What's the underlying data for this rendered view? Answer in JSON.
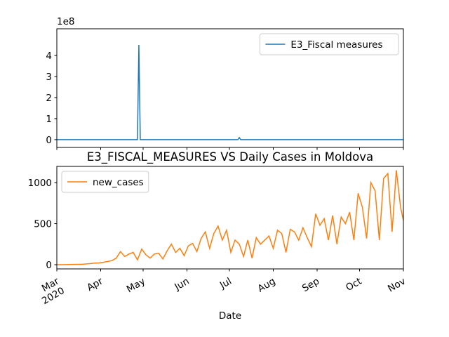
{
  "chart_data": [
    {
      "type": "line",
      "x": [
        0,
        57,
        58,
        59,
        128,
        129,
        130,
        245
      ],
      "series": [
        {
          "name": "E3_Fiscal measures",
          "color": "#1f77b4",
          "values": [
            0,
            0,
            4.5,
            0,
            0,
            0.1,
            0,
            0
          ]
        }
      ],
      "xlim": [
        0,
        245
      ],
      "xticks": [
        0,
        31,
        61,
        92,
        122,
        153,
        184,
        214,
        245
      ],
      "show_xtick_labels": false,
      "ylim": [
        -0.37,
        5.27
      ],
      "yticks": [
        0,
        1,
        2,
        3,
        4
      ],
      "offset_text": "1e8",
      "legend": "upper right"
    },
    {
      "type": "line",
      "title": "E3_FISCAL_MEASURES VS Daily Cases in Moldova",
      "xlabel": "Date",
      "x": [
        0,
        3,
        6,
        9,
        12,
        15,
        18,
        21,
        24,
        27,
        30,
        33,
        36,
        39,
        42,
        45,
        48,
        51,
        54,
        57,
        60,
        63,
        66,
        69,
        72,
        75,
        78,
        81,
        84,
        87,
        90,
        93,
        96,
        99,
        102,
        105,
        108,
        111,
        114,
        117,
        120,
        123,
        126,
        129,
        132,
        135,
        138,
        141,
        144,
        147,
        150,
        153,
        156,
        159,
        162,
        165,
        168,
        171,
        174,
        177,
        180,
        183,
        186,
        189,
        192,
        195,
        198,
        201,
        204,
        207,
        210,
        213,
        216,
        219,
        222,
        225,
        228,
        231,
        234,
        237,
        240,
        243,
        245
      ],
      "series": [
        {
          "name": "new_cases",
          "color": "#ff7f0e",
          "values": [
            0,
            0,
            1,
            2,
            3,
            5,
            5,
            10,
            14,
            20,
            22,
            30,
            40,
            50,
            80,
            160,
            100,
            130,
            150,
            60,
            190,
            120,
            80,
            130,
            140,
            70,
            170,
            250,
            150,
            200,
            110,
            230,
            260,
            160,
            320,
            400,
            200,
            380,
            470,
            300,
            420,
            150,
            300,
            250,
            100,
            300,
            80,
            330,
            250,
            300,
            350,
            200,
            420,
            380,
            150,
            430,
            400,
            300,
            450,
            330,
            220,
            620,
            480,
            560,
            300,
            600,
            250,
            580,
            500,
            640,
            300,
            870,
            700,
            320,
            1000,
            900,
            300,
            1050,
            1110,
            400,
            1150,
            700,
            540
          ]
        }
      ],
      "xlim": [
        0,
        245
      ],
      "xticks": [
        {
          "value": 0,
          "label": "Mar\n2020"
        },
        {
          "value": 31,
          "label": "Apr"
        },
        {
          "value": 61,
          "label": "May"
        },
        {
          "value": 92,
          "label": "Jun"
        },
        {
          "value": 122,
          "label": "Jul"
        },
        {
          "value": 153,
          "label": "Aug"
        },
        {
          "value": 184,
          "label": "Sep"
        },
        {
          "value": 214,
          "label": "Oct"
        },
        {
          "value": 245,
          "label": "Nov"
        }
      ],
      "ylim": [
        -51,
        1197
      ],
      "yticks": [
        0,
        500,
        1000
      ],
      "legend": "upper left"
    }
  ]
}
